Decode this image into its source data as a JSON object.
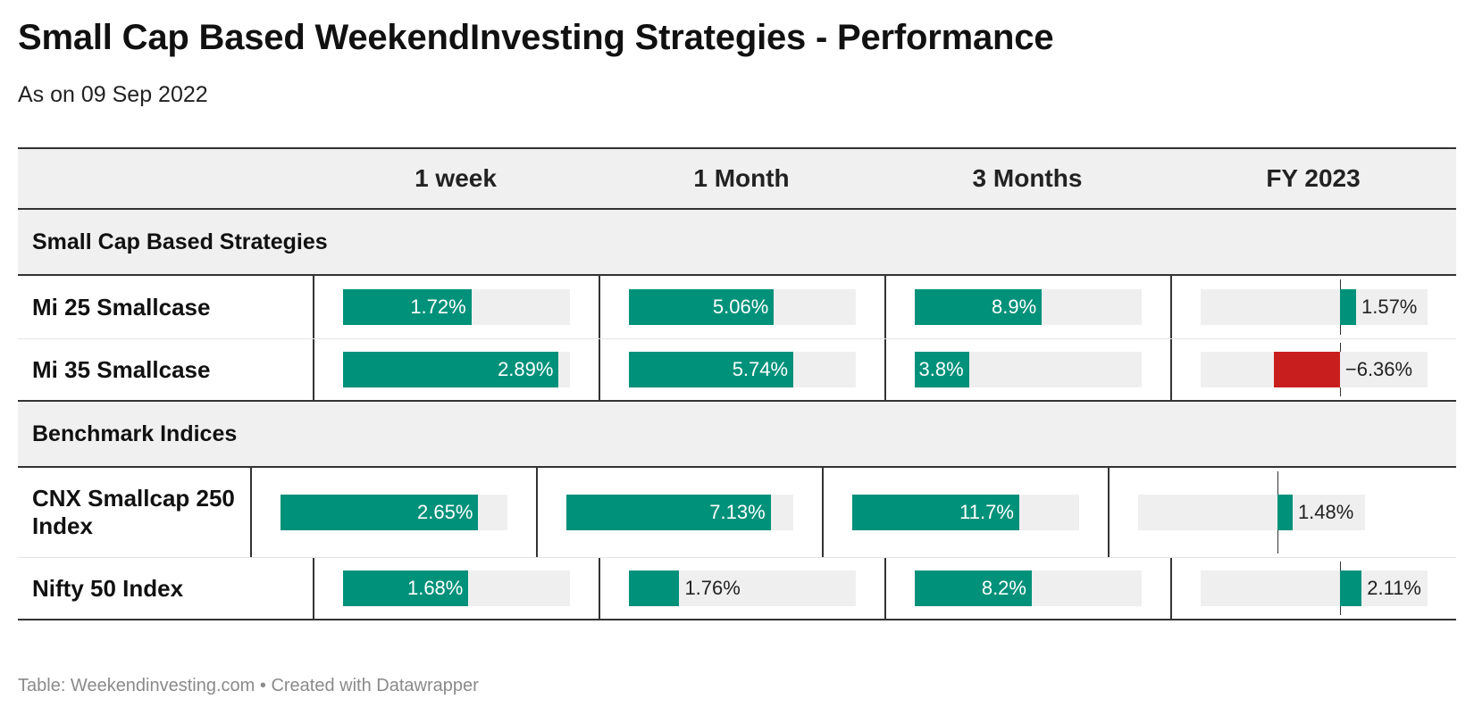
{
  "title": "Small Cap Based WeekendInvesting Strategies - Performance",
  "subtitle": "As on 09 Sep 2022",
  "footer": "Table: Weekendinvesting.com • Created with Datawrapper",
  "colors": {
    "positive": "#00917a",
    "negative": "#c81e1e",
    "track": "#efefef"
  },
  "chart_data": {
    "type": "table",
    "columns": [
      "",
      "1 week",
      "1 Month",
      "3 Months",
      "FY 2023"
    ],
    "column_ranges": [
      [
        0,
        3.04
      ],
      [
        0,
        7.92
      ],
      [
        0,
        15.9
      ],
      [
        -13.5,
        8.5
      ]
    ],
    "groups": [
      {
        "label": "Small Cap Based Strategies",
        "rows": [
          {
            "name": "Mi 25 Smallcase",
            "values": [
              1.72,
              5.06,
              8.9,
              1.57
            ],
            "labels": [
              "1.72%",
              "5.06%",
              "8.9%",
              "1.57%"
            ]
          },
          {
            "name": "Mi 35 Smallcase",
            "values": [
              2.89,
              5.74,
              3.8,
              -6.36
            ],
            "labels": [
              "2.89%",
              "5.74%",
              "3.8%",
              "−6.36%"
            ]
          }
        ]
      },
      {
        "label": "Benchmark Indices",
        "rows": [
          {
            "name": "CNX Smallcap 250 Index",
            "values": [
              2.65,
              7.13,
              11.7,
              1.48
            ],
            "labels": [
              "2.65%",
              "7.13%",
              "11.7%",
              "1.48%"
            ]
          },
          {
            "name": "Nifty 50 Index",
            "values": [
              1.68,
              1.76,
              8.2,
              2.11
            ],
            "labels": [
              "1.68%",
              "1.76%",
              "8.2%",
              "2.11%"
            ]
          }
        ]
      }
    ]
  }
}
